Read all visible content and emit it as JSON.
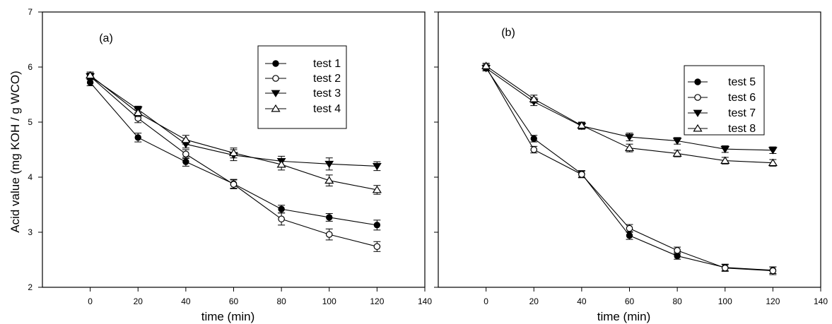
{
  "chart_data": [
    {
      "type": "line",
      "panel_label": "(a)",
      "xlabel": "time (min)",
      "ylabel": "Acid value (mg KOH / g WCO)",
      "xlim": [
        -20,
        140
      ],
      "ylim": [
        2,
        7
      ],
      "xticks": [
        0,
        20,
        40,
        60,
        80,
        100,
        120,
        140
      ],
      "yticks": [
        2,
        3,
        4,
        5,
        6,
        7
      ],
      "x": [
        0,
        20,
        40,
        60,
        80,
        100,
        120
      ],
      "legend_position": "top-right",
      "grid": false,
      "series": [
        {
          "name": "test 1",
          "marker": "filled-circle",
          "values": [
            5.72,
            4.72,
            4.28,
            3.88,
            3.42,
            3.27,
            3.13
          ],
          "errors": [
            0.06,
            0.08,
            0.08,
            0.08,
            0.07,
            0.07,
            0.09
          ]
        },
        {
          "name": "test 2",
          "marker": "open-circle",
          "values": [
            5.83,
            5.07,
            4.42,
            3.87,
            3.24,
            2.96,
            2.74
          ],
          "errors": [
            0.06,
            0.08,
            0.08,
            0.08,
            0.11,
            0.1,
            0.09
          ]
        },
        {
          "name": "test 3",
          "marker": "filled-triangle-down",
          "values": [
            5.83,
            5.23,
            4.6,
            4.4,
            4.29,
            4.24,
            4.2
          ],
          "errors": [
            0.05,
            0.06,
            0.07,
            0.1,
            0.09,
            0.11,
            0.08
          ]
        },
        {
          "name": "test 4",
          "marker": "open-triangle-up",
          "values": [
            5.85,
            5.17,
            4.68,
            4.44,
            4.23,
            3.94,
            3.77
          ],
          "errors": [
            0.06,
            0.07,
            0.08,
            0.09,
            0.1,
            0.1,
            0.08
          ]
        }
      ]
    },
    {
      "type": "line",
      "panel_label": "(b)",
      "xlabel": "time (min)",
      "ylabel": "",
      "xlim": [
        -20,
        140
      ],
      "ylim": [
        2,
        7
      ],
      "xticks": [
        0,
        20,
        40,
        60,
        80,
        100,
        120,
        140
      ],
      "yticks": [
        2,
        3,
        4,
        5,
        6,
        7
      ],
      "show_y_tick_labels": false,
      "x": [
        0,
        20,
        40,
        60,
        80,
        100,
        120
      ],
      "legend_position": "top-right",
      "grid": false,
      "series": [
        {
          "name": "test 5",
          "marker": "filled-circle",
          "values": [
            5.98,
            4.7,
            4.06,
            2.94,
            2.57,
            2.36,
            2.31
          ],
          "errors": [
            0.05,
            0.06,
            0.06,
            0.07,
            0.06,
            0.06,
            0.06
          ]
        },
        {
          "name": "test 6",
          "marker": "open-circle",
          "values": [
            6.0,
            4.5,
            4.05,
            3.07,
            2.67,
            2.35,
            2.3
          ],
          "errors": [
            0.05,
            0.06,
            0.06,
            0.07,
            0.06,
            0.06,
            0.07
          ]
        },
        {
          "name": "test 7",
          "marker": "filled-triangle-down",
          "values": [
            5.98,
            5.37,
            4.93,
            4.73,
            4.66,
            4.51,
            4.49
          ],
          "errors": [
            0.05,
            0.07,
            0.06,
            0.07,
            0.06,
            0.06,
            0.06
          ]
        },
        {
          "name": "test 8",
          "marker": "open-triangle-up",
          "values": [
            6.02,
            5.42,
            4.94,
            4.53,
            4.43,
            4.3,
            4.26
          ],
          "errors": [
            0.05,
            0.07,
            0.06,
            0.07,
            0.06,
            0.06,
            0.06
          ]
        }
      ]
    }
  ]
}
